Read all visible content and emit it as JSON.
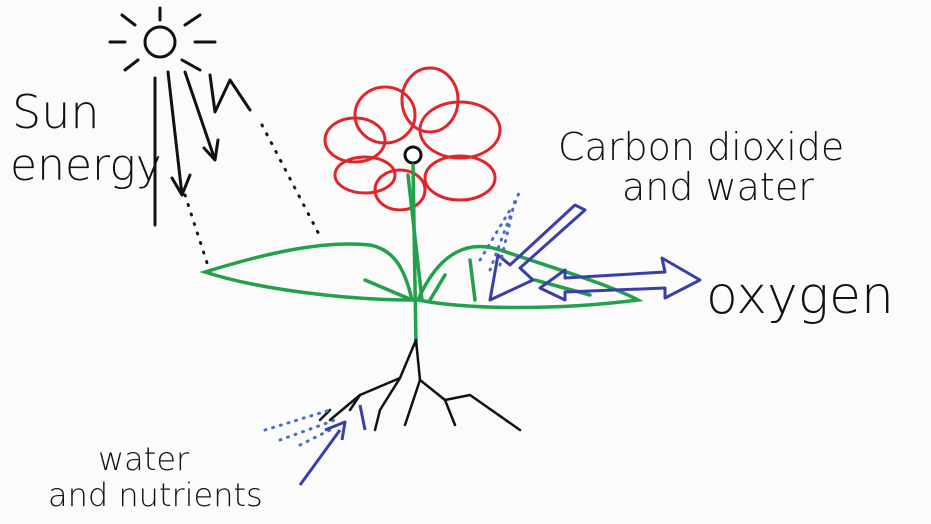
{
  "labels": {
    "sun_energy": [
      "Sun",
      "energy"
    ],
    "carbon_dioxide_and_water": [
      "Carbon dioxide",
      "and water"
    ],
    "oxygen": "oxygen",
    "water_and_nutrients": [
      "water",
      "and nutrients"
    ]
  }
}
